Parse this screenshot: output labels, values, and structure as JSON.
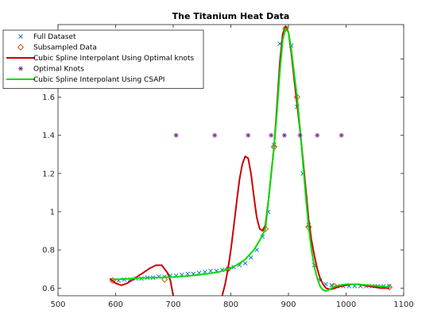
{
  "chart_data": {
    "type": "line",
    "title": "The Titanium Heat Data",
    "xlabel": "",
    "ylabel": "",
    "xlim": [
      500,
      1100
    ],
    "ylim": [
      0.56,
      1.98
    ],
    "xticks": [
      500,
      600,
      700,
      800,
      900,
      1000,
      1100
    ],
    "yticks": [
      0.6,
      0.8,
      1,
      1.2,
      1.4,
      1.6,
      1.8
    ],
    "grid": false,
    "legend_position": "top-left",
    "series": [
      {
        "name": "Full Dataset",
        "kind": "marker-x",
        "color": "#0072BD",
        "x": [
          595,
          605,
          615,
          625,
          635,
          645,
          655,
          665,
          675,
          685,
          695,
          705,
          715,
          725,
          735,
          745,
          755,
          765,
          775,
          785,
          795,
          805,
          815,
          825,
          835,
          845,
          855,
          865,
          875,
          885,
          895,
          905,
          915,
          925,
          935,
          945,
          955,
          965,
          975,
          985,
          995,
          1005,
          1015,
          1025,
          1035,
          1045,
          1055,
          1065,
          1075
        ],
        "y": [
          0.64,
          0.64,
          0.645,
          0.645,
          0.65,
          0.65,
          0.655,
          0.655,
          0.66,
          0.66,
          0.665,
          0.665,
          0.67,
          0.675,
          0.675,
          0.68,
          0.685,
          0.69,
          0.69,
          0.695,
          0.7,
          0.71,
          0.72,
          0.73,
          0.76,
          0.8,
          0.87,
          1.0,
          1.35,
          1.88,
          1.96,
          1.87,
          1.55,
          1.2,
          0.93,
          0.72,
          0.64,
          0.62,
          0.615,
          0.61,
          0.61,
          0.61,
          0.61,
          0.61,
          0.61,
          0.61,
          0.61,
          0.61,
          0.61
        ]
      },
      {
        "name": "Subsampled Data",
        "kind": "marker-diamond",
        "color": "#D95319",
        "x": [
          595,
          685,
          795,
          860,
          875,
          895,
          915,
          935,
          980,
          1075
        ],
        "y": [
          0.64,
          0.645,
          0.7,
          0.91,
          1.34,
          1.96,
          1.6,
          0.92,
          0.61,
          0.605
        ]
      },
      {
        "name": "Cubic Spline Interpolant Using Optimal knots",
        "kind": "line",
        "color": "#CC0000",
        "x": [
          590,
          600,
          610,
          620,
          630,
          640,
          650,
          660,
          670,
          680,
          690,
          695,
          700,
          705,
          710,
          750,
          780,
          785,
          790,
          795,
          800,
          805,
          810,
          815,
          820,
          825,
          830,
          835,
          840,
          845,
          850,
          855,
          860,
          865,
          870,
          875,
          880,
          885,
          890,
          895,
          900,
          905,
          910,
          915,
          920,
          925,
          930,
          935,
          940,
          945,
          950,
          955,
          960,
          965,
          970,
          975,
          980,
          990,
          1000,
          1010,
          1020,
          1030,
          1040,
          1050,
          1060,
          1070,
          1075
        ],
        "y": [
          0.65,
          0.625,
          0.615,
          0.625,
          0.645,
          0.665,
          0.685,
          0.705,
          0.72,
          0.72,
          0.68,
          0.64,
          0.56,
          0.5,
          0.45,
          0.45,
          0.5,
          0.56,
          0.62,
          0.7,
          0.8,
          0.92,
          1.05,
          1.17,
          1.25,
          1.29,
          1.28,
          1.2,
          1.08,
          0.97,
          0.91,
          0.9,
          0.93,
          1.05,
          1.2,
          1.34,
          1.55,
          1.78,
          1.93,
          1.97,
          1.94,
          1.83,
          1.69,
          1.56,
          1.43,
          1.28,
          1.12,
          0.96,
          0.85,
          0.77,
          0.7,
          0.65,
          0.62,
          0.6,
          0.595,
          0.595,
          0.6,
          0.61,
          0.615,
          0.62,
          0.62,
          0.615,
          0.61,
          0.605,
          0.6,
          0.6,
          0.6
        ]
      },
      {
        "name": "Optimal Knots",
        "kind": "marker-star",
        "color": "#7E2F8E",
        "x": [
          705,
          772,
          830,
          870,
          893,
          920,
          950,
          992
        ],
        "y": [
          1.4,
          1.4,
          1.4,
          1.4,
          1.4,
          1.4,
          1.4,
          1.4
        ]
      },
      {
        "name": "Cubic Spline Interpolant Using CSAPI",
        "kind": "line",
        "color": "#00DD00",
        "x": [
          595,
          620,
          640,
          660,
          680,
          700,
          720,
          740,
          760,
          780,
          795,
          810,
          825,
          840,
          850,
          860,
          865,
          870,
          875,
          880,
          885,
          890,
          895,
          900,
          905,
          910,
          915,
          920,
          925,
          930,
          935,
          940,
          945,
          950,
          955,
          960,
          965,
          970,
          980,
          1000,
          1020,
          1040,
          1060,
          1075
        ],
        "y": [
          0.645,
          0.648,
          0.652,
          0.654,
          0.656,
          0.658,
          0.662,
          0.668,
          0.675,
          0.685,
          0.7,
          0.72,
          0.75,
          0.8,
          0.85,
          0.91,
          1.05,
          1.2,
          1.34,
          1.52,
          1.73,
          1.9,
          1.96,
          1.94,
          1.85,
          1.72,
          1.6,
          1.44,
          1.26,
          1.08,
          0.92,
          0.8,
          0.71,
          0.65,
          0.61,
          0.59,
          0.585,
          0.59,
          0.61,
          0.62,
          0.62,
          0.615,
          0.61,
          0.605
        ]
      }
    ]
  }
}
